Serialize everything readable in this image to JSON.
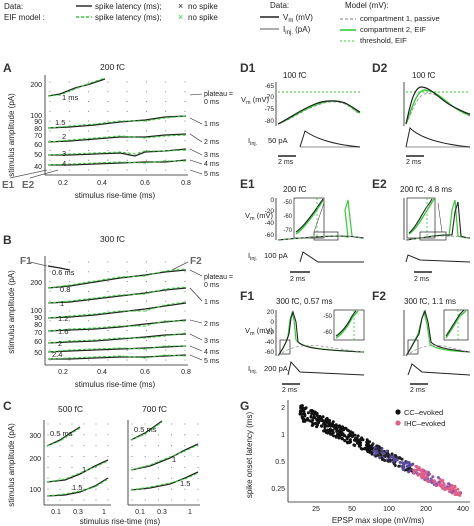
{
  "legend_left": {
    "data_label": "Data:",
    "eif_label": "EIF model :",
    "spike_latency_label": "spike latency (ms);",
    "no_spike_label": "no spike"
  },
  "legend_right": {
    "data_label": "Data:",
    "vm_label": "V",
    "vm_sub": "m",
    "vm_unit": " (mV)",
    "iinj_label": "I",
    "iinj_sub": "inj.",
    "iinj_unit": " (pA)",
    "model_label": "Model (mV):",
    "comp1": "compartment 1, passive",
    "comp2": "compartment 2, EIF",
    "threshold": "threshold, EIF"
  },
  "panels": {
    "A": {
      "label": "A",
      "title": "200 fC",
      "plateau_label": "plateau =",
      "plateau_value": "0 ms",
      "corner_labels": [
        "E1",
        "E2"
      ],
      "ylabel": "stimulus amplitude (pA)",
      "xlabel": "stimulus rise-time (ms)",
      "yticks": [
        "200",
        "100",
        "90",
        "80",
        "70",
        "60",
        "50",
        "40"
      ],
      "xticks": [
        "0.2",
        "0.4",
        "0.6",
        "0.8"
      ],
      "contour_labels": [
        "1 ms",
        "1.5",
        "2",
        "3",
        "4"
      ],
      "right_labels": [
        "1 ms",
        "2 ms",
        "3 ms",
        "4 ms",
        "5 ms"
      ]
    },
    "B": {
      "label": "B",
      "title": "300 fC",
      "plateau_label": "plateau =",
      "plateau_value": "0 ms",
      "corner_labels": [
        "F1",
        "F2"
      ],
      "ylabel": "stimulus amplitude (pA)",
      "xlabel": "stimulus rise-time (ms)",
      "yticks": [
        "200",
        "100",
        "90",
        "80",
        "70",
        "60",
        "50"
      ],
      "xticks": [
        "0.2",
        "0.4",
        "0.6",
        "0.8"
      ],
      "contour_labels": [
        "0.6 ms",
        "0.8",
        "1",
        "1.2",
        "1.6",
        "2",
        "2.4"
      ],
      "right_labels": [
        "1 ms",
        "2 ms",
        "3 ms",
        "4 ms",
        "5 ms"
      ]
    },
    "C": {
      "label": "C",
      "title_left": "500 fC",
      "title_right": "700 fC",
      "ylabel": "stimulus amplitude (pA)",
      "xlabel": "stimulus rise-time (ms)",
      "yticks": [
        "300",
        "200",
        "100"
      ],
      "xticks": [
        "0.1",
        "0.3",
        "1"
      ],
      "contour_labels_left": [
        "0.5 ms",
        "1",
        "1.5"
      ],
      "contour_labels_right": [
        "0.5 ms",
        "1",
        "1.5"
      ]
    },
    "D1": {
      "label": "D1",
      "title": "100 fC"
    },
    "D2": {
      "label": "D2",
      "title": "100 fC"
    },
    "E1": {
      "label": "E1",
      "title": "200 fC"
    },
    "E2": {
      "label": "E2",
      "title": "200 fC, 4.8 ms"
    },
    "F1": {
      "label": "F1",
      "title": "300 fC, 0.57 ms"
    },
    "F2": {
      "label": "F2",
      "title": "300 fC, 1.1 ms"
    },
    "G": {
      "label": "G",
      "xlabel": "EPSP max slope (mV/ms)",
      "ylabel": "spike onset latency (ms)",
      "xticks": [
        "25",
        "50",
        "100",
        "200",
        "400"
      ],
      "yticks": [
        "2",
        "1",
        "0.5",
        "0.25"
      ],
      "legend_cc": "CC–evoked",
      "legend_ihc": "IHC–evoked"
    }
  },
  "traces": {
    "D_vm_label": "V",
    "D_vm_sub": "m",
    "D_vm_unit": " (mV)",
    "D_yticks": [
      "-65",
      "-70",
      "-75",
      "-80"
    ],
    "D_iinj_label": "I",
    "D_iinj_sub": "inj.",
    "D_iinj_value": "50 pA",
    "D_scale": "2 ms",
    "E_yticks": [
      "0",
      "-20",
      "-40",
      "-60"
    ],
    "E_inset_yticks": [
      "-50",
      "-60",
      "-70"
    ],
    "E_iinj_value": "100 pA",
    "E_scale": "2 ms",
    "F_yticks": [
      "20",
      "0",
      "-20",
      "-40",
      "-60"
    ],
    "F_inset_yticks": [
      "-50",
      "-60"
    ],
    "F_iinj_value": "200 pA",
    "F_scale": "2 ms"
  },
  "colors": {
    "data": "#222222",
    "model": "#33cc33",
    "passive": "#999999",
    "cc": "#111111",
    "ihc": "#e0608a",
    "mid": "#5a4aa0"
  }
}
